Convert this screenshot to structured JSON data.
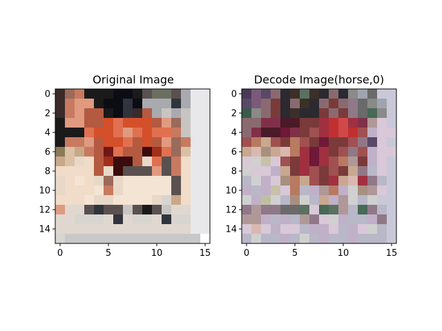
{
  "chart_data": [
    {
      "type": "heatmap",
      "title": "Original Image",
      "grid": false,
      "size": [
        16,
        16
      ],
      "x_ticks": [
        "0",
        "5",
        "10",
        "15"
      ],
      "y_ticks": [
        "0",
        "2",
        "4",
        "6",
        "8",
        "10",
        "12",
        "14"
      ],
      "palette": [
        "#3a2a2a",
        "#1a1a1a",
        "#0c0c14",
        "#6a7060",
        "#a9a9b0",
        "#e8e8ea",
        "#c8c4c2",
        "#9a6a5a",
        "#c87a60",
        "#e09a80",
        "#b45a40",
        "#d4502a",
        "#e07050",
        "#a0301a",
        "#701818",
        "#3a0c0c",
        "#e8d8c8",
        "#f0dcc8",
        "#f4e4d4",
        "#dcc0a4",
        "#8a7a5a",
        "#c8a888",
        "#5a5050",
        "#30343c",
        "#e0d8d0",
        "#d8d4d0",
        "#c8c8c8",
        "#ffffff"
      ],
      "rows": [
        "0 7 8 1 1 1 2 2 1 22 3 3 22 4 5 5",
        "0 8 9 9 1 2 2 23 2 4 4 4 23 4 5 5",
        "0 8 9 10 10 1 2 23 0 10 4 6 4 6 5 5",
        "1 9 9 10 10 11 12 11 11 11 10 9 7 6 5 5",
        "1 1 1 12 11 11 12 9 12 11 12 12 8 6 5 5",
        "1 8 8 9 10 11 11 12 10 11 10 9 7 8 5 5",
        "20 19 21 8 10 14 12 10 10 15 13 12 7 19 5 5",
        "21 19 16 17 10 13 15 15 10 16 12 22 8 17 5 5",
        "17 17 17 17 10 16 15 22 22 22 9 22 8 17 5 5",
        "16 17 18 17 16 7 16 18 18 18 18 18 22 17 5 5",
        "16 17 17 17 18 8 16 18 18 18 18 18 22 17 5 5",
        "17 17 17 18 16 16 18 18 18 18 16 25 21 17 5 5",
        "9 24 24 22 23 22 22 6 22 1 22 6 24 24 5 5",
        "24 24 25 25 25 24 23 24 25 25 24 23 25 25 5 5",
        "24 24 24 24 24 24 24 24 24 24 24 24 24 24 5 5",
        "25 26 26 26 26 26 26 26 26 26 26 26 26 26 26 27"
      ]
    },
    {
      "type": "heatmap",
      "title": "Decode Image(horse,0)",
      "grid": false,
      "size": [
        16,
        16
      ],
      "x_ticks": [
        "0",
        "5",
        "10",
        "15"
      ],
      "y_ticks": [
        "0",
        "2",
        "4",
        "6",
        "8",
        "10",
        "12",
        "14"
      ],
      "palette": [
        "#4a3a58",
        "#5a4868",
        "#7a5a78",
        "#8a6a70",
        "#2a2a30",
        "#3a3028",
        "#6a6a6a",
        "#8a8a88",
        "#a0a4b0",
        "#c8c8d8",
        "#803048",
        "#701838",
        "#4a1a28",
        "#a03040",
        "#c03030",
        "#d04848",
        "#7a3a3a",
        "#a05050",
        "#b87a60",
        "#c8a890",
        "#d8b8b0",
        "#a89080",
        "#c8c0a8",
        "#d0d0d0",
        "#b8b8c8",
        "#d8c8d8",
        "#c0b0c8",
        "#b09898",
        "#907888",
        "#5a7060",
        "#486858",
        "#3a5a4a",
        "#c0c0a0"
      ],
      "rows": [
        "0 2 1 3 4 5 29 5 4 3 4 7 8 6 9 9",
        "1 2 3 16 4 3 5 4 3 16 3 28 6 7 8 9",
        "31 7 3 16 4 5 4 4 16 3 16 28 6 30 7 9",
        "3 3 10 10 12 12 16 16 13 14 15 13 10 27 25 9",
        "3 10 12 12 11 10 16 17 13 14 15 14 17 26 25 25",
        "17 18 19 17 16 18 17 16 11 16 16 17 28 1 25 9",
        "19 20 21 19 20 18 13 11 13 16 17 28 17 26 25 25",
        "25 23 22 25 17 16 13 11 13 17 18 27 16 26 25 9",
        "23 25 25 26 19 16 13 17 16 17 16 19 28 24 25 9",
        "24 23 26 25 21 18 19 17 16 13 19 20 13 28 24 9",
        "26 24 26 22 25 18 24 26 27 18 26 23 21 27 25 9",
        "23 26 32 23 24 21 23 24 19 26 27 23 24 23 9 9",
        "28 27 28 28 6 6 29 25 30 29 27 24 30 28 24 9",
        "27 27 26 24 26 24 27 28 25 23 26 24 24 26 28 9",
        "25 20 25 26 25 25 24 26 26 25 24 26 25 23 24 9",
        "24 23 24 24 26 24 23 24 26 24 24 26 24 24 24 9"
      ]
    }
  ]
}
